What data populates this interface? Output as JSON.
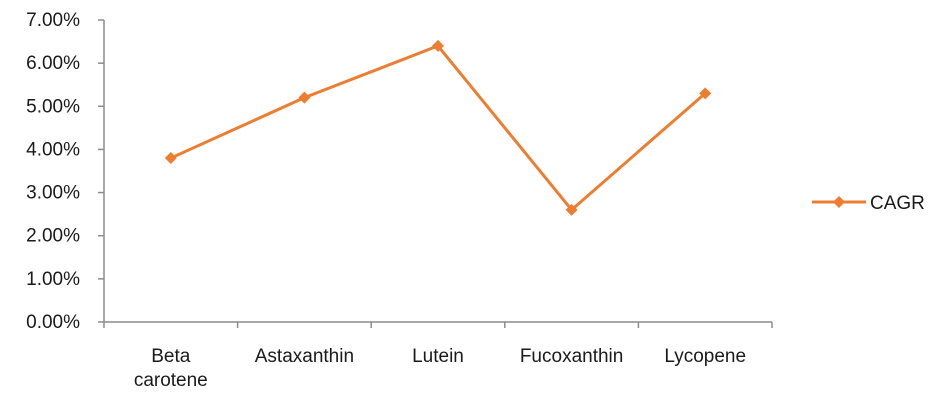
{
  "chart_data": {
    "type": "line",
    "categories": [
      "Beta carotene",
      "Astaxanthin",
      "Lutein",
      "Fucoxanthin",
      "Lycopene"
    ],
    "category_label_lines": [
      [
        "Beta",
        "carotene"
      ],
      [
        "Astaxanthin"
      ],
      [
        "Lutein"
      ],
      [
        "Fucoxanthin"
      ],
      [
        "Lycopene"
      ]
    ],
    "series": [
      {
        "name": "CAGR",
        "values": [
          0.038,
          0.052,
          0.064,
          0.026,
          0.053
        ],
        "color": "#ED7D31",
        "marker": "diamond"
      }
    ],
    "y_ticks": [
      0,
      0.01,
      0.02,
      0.03,
      0.04,
      0.05,
      0.06,
      0.07
    ],
    "y_tick_labels": [
      "0.00%",
      "1.00%",
      "2.00%",
      "3.00%",
      "4.00%",
      "5.00%",
      "6.00%",
      "7.00%"
    ],
    "ylim": [
      0,
      0.07
    ],
    "grid": false,
    "legend": {
      "position": "right"
    }
  }
}
